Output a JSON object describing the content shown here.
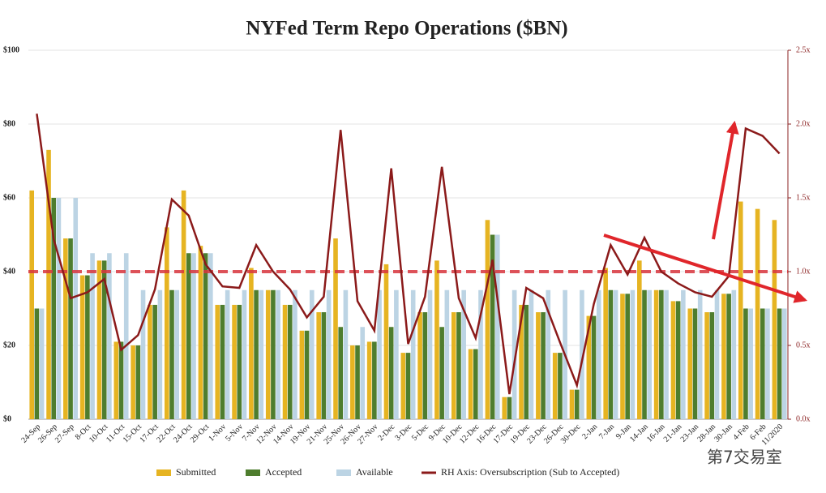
{
  "chart_data": {
    "type": "bar_line",
    "title": "NYFed Term Repo Operations ($BN)",
    "categories": [
      "24-Sep",
      "26-Sep",
      "27-Sep",
      "8-Oct",
      "10-Oct",
      "11-Oct",
      "15-Oct",
      "17-Oct",
      "22-Oct",
      "24-Oct",
      "29-Oct",
      "1-Nov",
      "5-Nov",
      "7-Nov",
      "12-Nov",
      "14-Nov",
      "19-Nov",
      "21-Nov",
      "25-Nov",
      "26-Nov",
      "27-Nov",
      "2-Dec",
      "3-Dec",
      "5-Dec",
      "9-Dec",
      "10-Dec",
      "12-Dec",
      "16-Dec",
      "17-Dec",
      "19-Dec",
      "23-Dec",
      "26-Dec",
      "30-Dec",
      "2-Jan",
      "7-Jan",
      "9-Jan",
      "14-Jan",
      "16-Jan",
      "21-Jan",
      "23-Jan",
      "28-Jan",
      "30-Jan",
      "4-Feb",
      "6-Feb",
      "11/2020"
    ],
    "series": [
      {
        "name": "Submitted",
        "color": "#e6b422",
        "values": [
          62,
          73,
          49,
          39,
          43,
          21,
          20,
          31,
          52,
          62,
          47,
          31,
          31,
          41,
          35,
          31,
          24,
          29,
          49,
          20,
          21,
          42,
          18,
          29,
          43,
          29,
          19,
          54,
          6,
          31,
          29,
          18,
          8,
          28,
          41,
          34,
          43,
          35,
          32,
          30,
          29,
          34,
          59,
          57,
          54
        ]
      },
      {
        "name": "Accepted",
        "color": "#4e7d2e",
        "values": [
          30,
          60,
          49,
          39,
          43,
          21,
          20,
          31,
          35,
          45,
          45,
          31,
          31,
          35,
          35,
          31,
          24,
          29,
          25,
          20,
          21,
          25,
          18,
          29,
          25,
          29,
          19,
          50,
          6,
          31,
          29,
          18,
          8,
          28,
          35,
          34,
          35,
          35,
          32,
          30,
          29,
          34,
          30,
          30,
          30
        ]
      },
      {
        "name": "Available",
        "color": "#bcd4e4",
        "values": [
          30,
          60,
          60,
          45,
          45,
          45,
          35,
          35,
          35,
          45,
          45,
          35,
          35,
          35,
          35,
          35,
          35,
          35,
          35,
          25,
          35,
          35,
          35,
          35,
          35,
          35,
          35,
          50,
          35,
          35,
          35,
          35,
          35,
          35,
          35,
          35,
          35,
          35,
          35,
          35,
          35,
          35,
          30,
          30,
          30
        ]
      },
      {
        "name": "RH Axis: Oversubscription (Sub to Accepted)",
        "color": "#8b1a1a",
        "axis": "y2",
        "type": "line",
        "values": [
          2.07,
          1.22,
          0.82,
          0.86,
          0.95,
          0.47,
          0.57,
          0.88,
          1.49,
          1.38,
          1.05,
          0.9,
          0.89,
          1.18,
          1.0,
          0.88,
          0.69,
          0.83,
          1.96,
          0.8,
          0.6,
          1.7,
          0.51,
          0.83,
          1.71,
          0.82,
          0.55,
          1.08,
          0.17,
          0.89,
          0.82,
          0.52,
          0.23,
          0.78,
          1.18,
          0.98,
          1.23,
          1.0,
          0.92,
          0.86,
          0.83,
          0.97,
          1.97,
          1.92,
          1.8
        ]
      }
    ],
    "ylim": [
      0,
      100
    ],
    "yticks": [
      {
        "value": 0,
        "label": "$0"
      },
      {
        "value": 20,
        "label": "$20"
      },
      {
        "value": 40,
        "label": "$40"
      },
      {
        "value": 60,
        "label": "$60"
      },
      {
        "value": 80,
        "label": "$80"
      },
      {
        "value": 100,
        "label": "$100"
      }
    ],
    "y2lim": [
      0,
      2.5
    ],
    "y2ticks": [
      {
        "value": 0,
        "label": "0.0x"
      },
      {
        "value": 0.5,
        "label": "0.5x"
      },
      {
        "value": 1,
        "label": "1.0x"
      },
      {
        "value": 1.5,
        "label": "1.5x"
      },
      {
        "value": 2,
        "label": "2.0x"
      },
      {
        "value": 2.5,
        "label": "2.5x"
      }
    ],
    "grid": true,
    "reference_line": {
      "value": 1,
      "axis": "y2",
      "color": "#d9363e"
    },
    "watermark": "第7交易室"
  }
}
